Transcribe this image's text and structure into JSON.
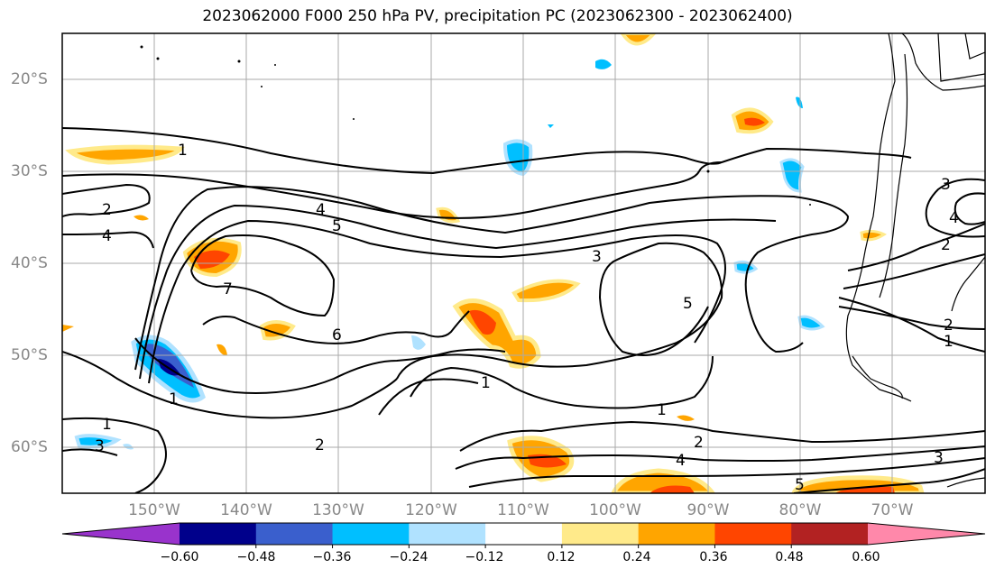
{
  "title": "2023062000 F000 250 hPa PV, precipitation PC (2023062300 - 2023062400)",
  "axes": {
    "lat_labels": [
      "20°S",
      "30°S",
      "40°S",
      "50°S",
      "60°S"
    ],
    "lon_labels": [
      "150°W",
      "140°W",
      "130°W",
      "120°W",
      "110°W",
      "100°W",
      "90°W",
      "80°W",
      "70°W"
    ]
  },
  "contour_labels": [
    "1",
    "2",
    "4",
    "4",
    "5",
    "7",
    "6",
    "3",
    "5",
    "1",
    "1",
    "2",
    "4",
    "5",
    "1",
    "2",
    "3",
    "4",
    "3",
    "2",
    "1",
    "1",
    "2",
    "3"
  ],
  "colorbar": {
    "tick_labels": [
      "−0.60",
      "−0.48",
      "−0.36",
      "−0.24",
      "−0.12",
      "0.12",
      "0.24",
      "0.36",
      "0.48",
      "0.60"
    ],
    "colors": [
      "#9933cc",
      "#00008b",
      "#3a5fcd",
      "#00bfff",
      "#b0e2ff",
      "#ffffff",
      "#ffea8a",
      "#ffa500",
      "#ff4500",
      "#b22222",
      "#ff88aa"
    ]
  }
}
